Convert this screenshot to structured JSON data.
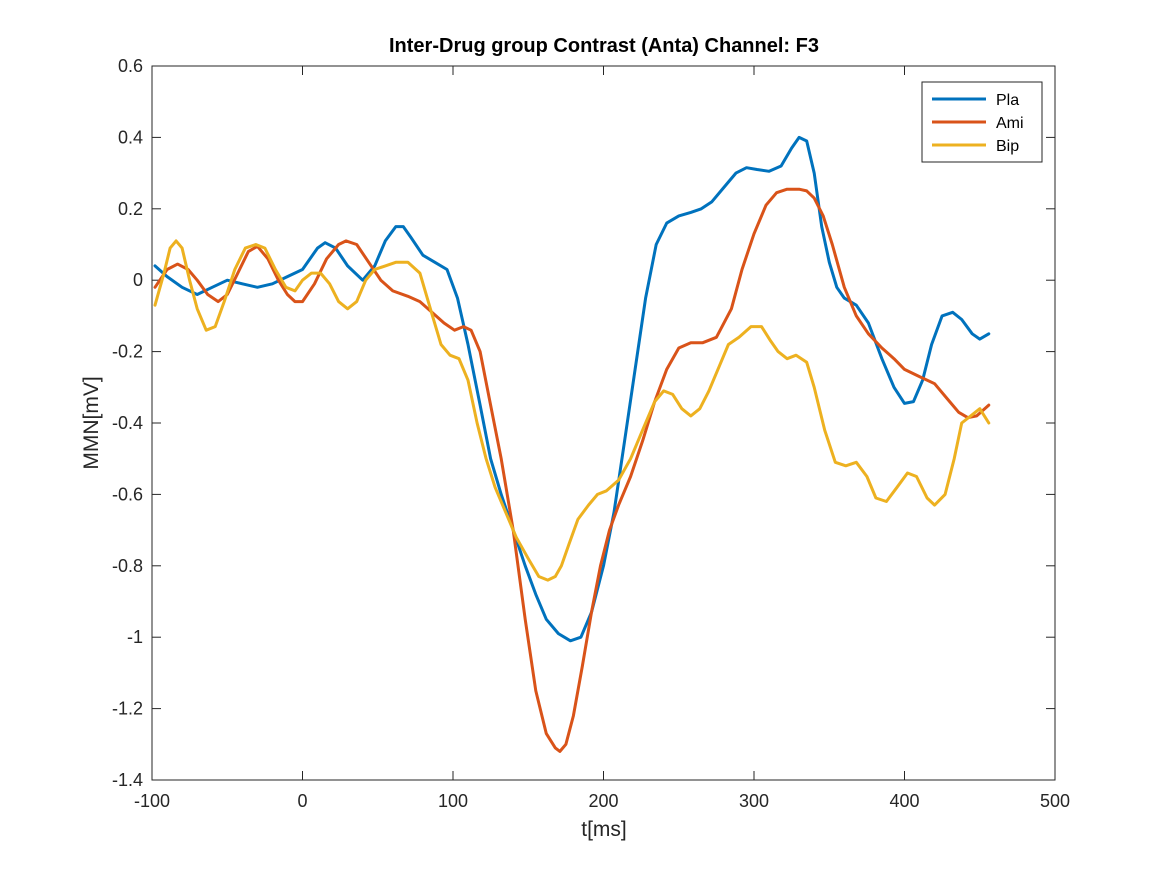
{
  "chart_data": {
    "type": "line",
    "title": "Inter-Drug group Contrast (Anta) Channel: F3",
    "xlabel": "t[ms]",
    "ylabel": "MMN[mV]",
    "xlim": [
      -100,
      500
    ],
    "ylim": [
      -1.4,
      0.6
    ],
    "xticks": [
      -100,
      0,
      100,
      200,
      300,
      400,
      500
    ],
    "yticks": [
      -1.4,
      -1.2,
      -1,
      -0.8,
      -0.6,
      -0.4,
      -0.2,
      0,
      0.2,
      0.4,
      0.6
    ],
    "xtick_labels": [
      "-100",
      "0",
      "100",
      "200",
      "300",
      "400",
      "500"
    ],
    "ytick_labels": [
      "-1.4",
      "-1.2",
      "-1",
      "-0.8",
      "-0.6",
      "-0.4",
      "-0.2",
      "0",
      "0.2",
      "0.4",
      "0.6"
    ],
    "grid": false,
    "legend": "top-right",
    "series": [
      {
        "name": "Pla",
        "color": "#0072BD",
        "x": [
          -98,
          -90,
          -80,
          -70,
          -60,
          -50,
          -40,
          -30,
          -20,
          -10,
          0,
          10,
          15,
          22,
          30,
          40,
          48,
          55,
          62,
          67,
          72,
          80,
          88,
          96,
          103,
          110,
          118,
          125,
          132,
          140,
          148,
          155,
          162,
          170,
          178,
          185,
          192,
          200,
          207,
          214,
          221,
          228,
          235,
          242,
          250,
          258,
          265,
          272,
          280,
          288,
          295,
          302,
          310,
          318,
          325,
          330,
          335,
          340,
          345,
          350,
          355,
          360,
          368,
          376,
          385,
          393,
          400,
          406,
          412,
          418,
          425,
          432,
          438,
          445,
          450,
          456
        ],
        "y": [
          0.04,
          0.01,
          -0.02,
          -0.04,
          -0.02,
          0.0,
          -0.01,
          -0.02,
          -0.01,
          0.01,
          0.03,
          0.09,
          0.105,
          0.09,
          0.04,
          0.0,
          0.04,
          0.11,
          0.15,
          0.15,
          0.12,
          0.07,
          0.05,
          0.03,
          -0.05,
          -0.18,
          -0.35,
          -0.5,
          -0.6,
          -0.7,
          -0.8,
          -0.88,
          -0.95,
          -0.99,
          -1.01,
          -1.0,
          -0.93,
          -0.8,
          -0.65,
          -0.45,
          -0.25,
          -0.05,
          0.1,
          0.16,
          0.18,
          0.19,
          0.2,
          0.22,
          0.26,
          0.3,
          0.315,
          0.31,
          0.305,
          0.32,
          0.37,
          0.4,
          0.39,
          0.3,
          0.15,
          0.05,
          -0.02,
          -0.05,
          -0.07,
          -0.12,
          -0.22,
          -0.3,
          -0.345,
          -0.34,
          -0.28,
          -0.18,
          -0.1,
          -0.09,
          -0.11,
          -0.15,
          -0.165,
          -0.15
        ]
      },
      {
        "name": "Ami",
        "color": "#D95319",
        "x": [
          -98,
          -90,
          -83,
          -76,
          -70,
          -63,
          -56,
          -50,
          -43,
          -36,
          -30,
          -23,
          -16,
          -10,
          -5,
          0,
          8,
          16,
          24,
          29,
          36,
          44,
          52,
          60,
          70,
          78,
          86,
          94,
          101,
          107,
          112,
          118,
          125,
          132,
          140,
          148,
          155,
          162,
          168,
          171,
          175,
          180,
          186,
          192,
          198,
          204,
          210,
          218,
          226,
          234,
          242,
          250,
          258,
          266,
          275,
          285,
          292,
          300,
          308,
          315,
          322,
          330,
          335,
          340,
          346,
          352,
          360,
          368,
          376,
          385,
          393,
          400,
          410,
          420,
          428,
          436,
          442,
          448,
          456
        ],
        "y": [
          -0.02,
          0.03,
          0.045,
          0.03,
          0.0,
          -0.04,
          -0.06,
          -0.04,
          0.02,
          0.08,
          0.095,
          0.06,
          0.0,
          -0.04,
          -0.06,
          -0.06,
          -0.01,
          0.06,
          0.1,
          0.11,
          0.1,
          0.05,
          0.0,
          -0.03,
          -0.045,
          -0.06,
          -0.09,
          -0.12,
          -0.14,
          -0.13,
          -0.14,
          -0.2,
          -0.35,
          -0.5,
          -0.7,
          -0.95,
          -1.15,
          -1.27,
          -1.31,
          -1.32,
          -1.3,
          -1.22,
          -1.08,
          -0.93,
          -0.8,
          -0.7,
          -0.63,
          -0.55,
          -0.45,
          -0.34,
          -0.25,
          -0.19,
          -0.175,
          -0.175,
          -0.16,
          -0.08,
          0.03,
          0.13,
          0.21,
          0.245,
          0.255,
          0.255,
          0.25,
          0.23,
          0.18,
          0.1,
          -0.02,
          -0.1,
          -0.15,
          -0.19,
          -0.22,
          -0.25,
          -0.27,
          -0.29,
          -0.33,
          -0.37,
          -0.385,
          -0.38,
          -0.35
        ]
      },
      {
        "name": "Bip",
        "color": "#EDB120",
        "x": [
          -98,
          -92,
          -88,
          -84,
          -80,
          -75,
          -70,
          -64,
          -58,
          -52,
          -45,
          -38,
          -31,
          -25,
          -18,
          -11,
          -5,
          0,
          6,
          12,
          18,
          24,
          30,
          36,
          42,
          48,
          55,
          62,
          70,
          78,
          85,
          92,
          98,
          104,
          110,
          116,
          122,
          128,
          135,
          142,
          150,
          157,
          163,
          168,
          172,
          177,
          183,
          190,
          196,
          202,
          210,
          218,
          226,
          234,
          240,
          246,
          252,
          258,
          264,
          270,
          277,
          283,
          290,
          298,
          305,
          311,
          316,
          322,
          328,
          335,
          340,
          347,
          354,
          361,
          368,
          375,
          381,
          388,
          395,
          402,
          408,
          415,
          420,
          427,
          433,
          438,
          444,
          450,
          456
        ],
        "y": [
          -0.07,
          0.02,
          0.09,
          0.11,
          0.09,
          0.0,
          -0.08,
          -0.14,
          -0.13,
          -0.06,
          0.03,
          0.09,
          0.1,
          0.09,
          0.03,
          -0.02,
          -0.03,
          0.0,
          0.02,
          0.02,
          -0.01,
          -0.06,
          -0.08,
          -0.06,
          0.0,
          0.03,
          0.04,
          0.05,
          0.05,
          0.02,
          -0.08,
          -0.18,
          -0.21,
          -0.22,
          -0.28,
          -0.4,
          -0.5,
          -0.58,
          -0.65,
          -0.72,
          -0.78,
          -0.83,
          -0.84,
          -0.83,
          -0.8,
          -0.74,
          -0.67,
          -0.63,
          -0.6,
          -0.59,
          -0.56,
          -0.5,
          -0.42,
          -0.34,
          -0.31,
          -0.32,
          -0.36,
          -0.38,
          -0.36,
          -0.31,
          -0.24,
          -0.18,
          -0.16,
          -0.13,
          -0.13,
          -0.17,
          -0.2,
          -0.22,
          -0.21,
          -0.23,
          -0.3,
          -0.42,
          -0.51,
          -0.52,
          -0.51,
          -0.55,
          -0.61,
          -0.62,
          -0.58,
          -0.54,
          -0.55,
          -0.61,
          -0.63,
          -0.6,
          -0.5,
          -0.4,
          -0.38,
          -0.36,
          -0.4
        ]
      }
    ]
  }
}
